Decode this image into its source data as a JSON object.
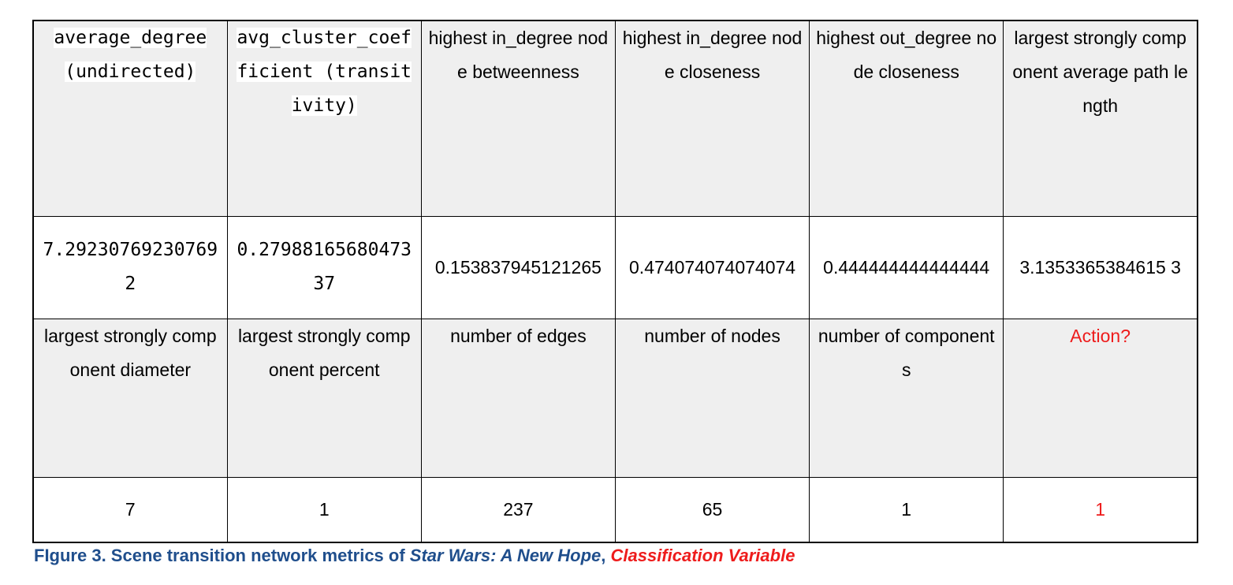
{
  "table": {
    "row1_headers": [
      "average_degree (undirected)",
      "avg_cluster_coefficient (transitivity)",
      "highest in_degree node betweenness",
      "highest in_degree node closeness",
      "highest out_degree node closeness",
      "largest strongly component average path length"
    ],
    "row1_values": [
      "7.292307692307692",
      "0.2798816568047337",
      "0.153837945121265",
      "0.474074074074074",
      "0.444444444444444",
      "3.1353365384615 3"
    ],
    "row2_headers": [
      "largest strongly component diameter",
      "largest strongly component percent",
      "number of edges",
      "number of nodes",
      "number of components",
      "Action?"
    ],
    "row2_values": [
      "7",
      "1",
      "237",
      "65",
      "1",
      "1"
    ]
  },
  "caption": {
    "prefix": "FIgure 3. Scene transition network metrics of ",
    "title": "Star Wars: A New Hope",
    "separator": ", ",
    "variable": "Classification Variable"
  },
  "colors": {
    "header_bg": "#efefef",
    "caption_blue": "#1f4e8c",
    "highlight_red": "#ee1c1c"
  }
}
